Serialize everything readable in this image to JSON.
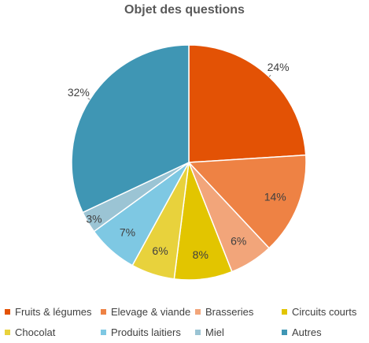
{
  "chart_data": {
    "type": "pie",
    "title": "Objet des questions",
    "slices": [
      {
        "label": "Fruits & légumes",
        "value": 24,
        "display": "24%",
        "color": "#E35205"
      },
      {
        "label": "Elevage & viande",
        "value": 14,
        "display": "14%",
        "color": "#EE8244"
      },
      {
        "label": "Brasseries",
        "value": 6,
        "display": "6%",
        "color": "#F2A57A"
      },
      {
        "label": "Circuits courts",
        "value": 8,
        "display": "8%",
        "color": "#E2C500"
      },
      {
        "label": "Chocolat",
        "value": 6,
        "display": "6%",
        "color": "#E8D23C"
      },
      {
        "label": "Produits laitiers",
        "value": 7,
        "display": "7%",
        "color": "#7EC8E3"
      },
      {
        "label": "Miel",
        "value": 3,
        "display": "3%",
        "color": "#9BC4D4"
      },
      {
        "label": "Autres",
        "value": 32,
        "display": "32%",
        "color": "#3F96B4"
      }
    ],
    "start_angle_deg": 0,
    "direction": "clockwise",
    "legend_position": "bottom"
  }
}
